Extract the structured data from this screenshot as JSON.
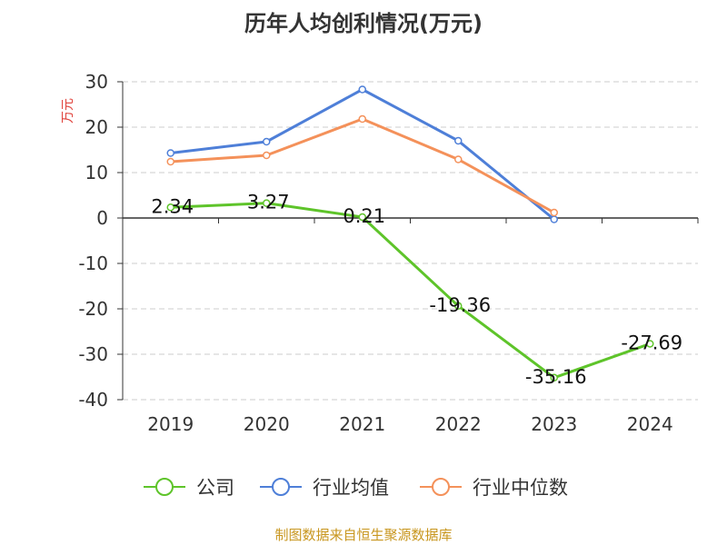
{
  "chart_data": {
    "type": "line",
    "title": "历年人均创利情况(万元)",
    "ylabel": "万元",
    "categories": [
      "2019",
      "2020",
      "2021",
      "2022",
      "2023",
      "2024"
    ],
    "ylim": [
      -40,
      30
    ],
    "y_ticks": [
      "30",
      "20",
      "10",
      "0",
      "-10",
      "-20",
      "-30",
      "-40"
    ],
    "grid": true,
    "legend_position": "bottom",
    "series": [
      {
        "name": "公司",
        "color": "#5ec42a",
        "values": [
          2.34,
          3.27,
          0.21,
          -19.36,
          -35.16,
          -27.69
        ],
        "data_labels": [
          "2.34",
          "3.27",
          "0.21",
          "-19.36",
          "-35.16",
          "-27.69"
        ]
      },
      {
        "name": "行业均值",
        "color": "#4e7fd8",
        "values": [
          14.3,
          16.8,
          28.3,
          17.0,
          -0.3,
          null
        ]
      },
      {
        "name": "行业中位数",
        "color": "#f4915a",
        "values": [
          12.4,
          13.8,
          21.8,
          12.9,
          1.2,
          null
        ]
      }
    ]
  },
  "source": {
    "text": "制图数据来自恒生聚源数据库",
    "color": "#c8961e"
  },
  "colors": {
    "axis": "#333333",
    "grid": "#cccccc",
    "ylabel": "#e0413a",
    "tick_text": "#333333"
  }
}
